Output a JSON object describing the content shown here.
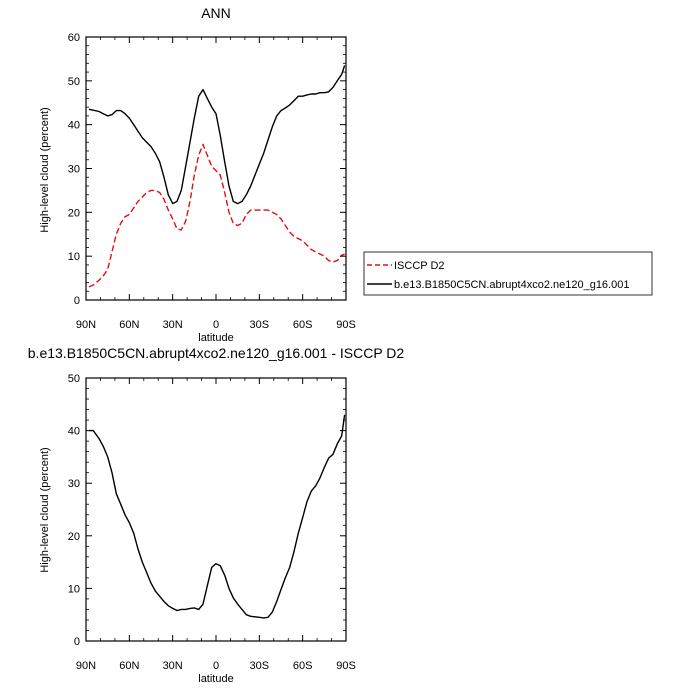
{
  "colors": {
    "obs": "#e01010",
    "model": "#000000",
    "axis": "#000000"
  },
  "chart_data": [
    {
      "type": "line",
      "title": "ANN",
      "xlabel": "latitude",
      "ylabel": "High-level cloud (percent)",
      "xlim": [
        90,
        -90
      ],
      "ylim": [
        0,
        60
      ],
      "xticks": [
        {
          "v": 90,
          "label": "90N"
        },
        {
          "v": 60,
          "label": "60N"
        },
        {
          "v": 30,
          "label": "30N"
        },
        {
          "v": 0,
          "label": "0"
        },
        {
          "v": -30,
          "label": "30S"
        },
        {
          "v": -60,
          "label": "60S"
        },
        {
          "v": -90,
          "label": "90S"
        }
      ],
      "yticks": [
        0,
        10,
        20,
        30,
        40,
        50,
        60
      ],
      "legend_position": "right",
      "series": [
        {
          "name": "ISCCP D2",
          "style": "dashed",
          "color": "#e01010",
          "x": [
            88,
            85,
            81,
            78,
            75,
            72,
            69,
            66,
            63,
            60,
            57,
            54,
            51,
            48,
            45,
            42,
            39,
            36,
            33,
            30,
            27,
            24,
            21,
            18,
            15,
            12,
            9,
            6,
            3,
            0,
            -3,
            -6,
            -9,
            -12,
            -15,
            -18,
            -21,
            -24,
            -27,
            -30,
            -33,
            -36,
            -39,
            -42,
            -45,
            -48,
            -51,
            -54,
            -57,
            -60,
            -63,
            -66,
            -69,
            -72,
            -75,
            -78,
            -81,
            -84,
            -87,
            -89
          ],
          "y": [
            3,
            3.4,
            4.5,
            5.5,
            7,
            11,
            15,
            17.5,
            19,
            19.5,
            21,
            22.5,
            23.5,
            24.5,
            25,
            25,
            24.5,
            23,
            20.5,
            18.5,
            16.2,
            16,
            18,
            22.5,
            28.5,
            33,
            35.5,
            33,
            30.5,
            29.5,
            28.5,
            24.5,
            20,
            17.5,
            17,
            17.5,
            19.5,
            20.5,
            20.5,
            20.5,
            20.5,
            20.5,
            20,
            19.5,
            18.5,
            17,
            15.5,
            14.5,
            14,
            13.5,
            12.5,
            11.5,
            11,
            10.5,
            10,
            9,
            8.7,
            9,
            10.2,
            10.5
          ]
        },
        {
          "name": "b.e13.B1850C5CN.abrupt4xco2.ne120_g16.001",
          "style": "solid",
          "color": "#000000",
          "x": [
            88,
            85,
            81,
            78,
            75,
            72,
            69,
            66,
            63,
            60,
            57,
            54,
            51,
            48,
            45,
            42,
            39,
            36,
            33,
            30,
            27,
            24,
            21,
            18,
            15,
            12,
            9,
            6,
            3,
            0,
            -3,
            -6,
            -9,
            -12,
            -15,
            -18,
            -21,
            -24,
            -27,
            -30,
            -33,
            -36,
            -39,
            -42,
            -45,
            -48,
            -51,
            -54,
            -57,
            -60,
            -63,
            -66,
            -69,
            -72,
            -75,
            -78,
            -81,
            -84,
            -87,
            -89
          ],
          "y": [
            43.5,
            43.3,
            43,
            42.5,
            42,
            42.3,
            43.2,
            43.2,
            42.5,
            41.5,
            40,
            38.5,
            37,
            36,
            35,
            33.5,
            31.5,
            28,
            24,
            22,
            22.5,
            25,
            30.5,
            36,
            41.5,
            46.5,
            48,
            46,
            44,
            42.5,
            37.5,
            31.5,
            26,
            22.5,
            22,
            22.5,
            24,
            26,
            28.5,
            31,
            33.5,
            36.5,
            39.5,
            42,
            43.2,
            43.8,
            44.5,
            45.5,
            46.5,
            46.5,
            46.8,
            47,
            47,
            47.3,
            47.3,
            47.5,
            48.5,
            50,
            51.5,
            53.5
          ]
        }
      ]
    },
    {
      "type": "line",
      "title": "b.e13.B1850C5CN.abrupt4xco2.ne120_g16.001 - ISCCP D2",
      "xlabel": "latitude",
      "ylabel": "High-level cloud (percent)",
      "xlim": [
        90,
        -90
      ],
      "ylim": [
        0,
        50
      ],
      "xticks": [
        {
          "v": 90,
          "label": "90N"
        },
        {
          "v": 60,
          "label": "60N"
        },
        {
          "v": 30,
          "label": "30N"
        },
        {
          "v": 0,
          "label": "0"
        },
        {
          "v": -30,
          "label": "30S"
        },
        {
          "v": -60,
          "label": "60S"
        },
        {
          "v": -90,
          "label": "90S"
        }
      ],
      "yticks": [
        0,
        10,
        20,
        30,
        40,
        50
      ],
      "series": [
        {
          "style": "solid",
          "color": "#000000",
          "x": [
            88,
            85,
            81,
            78,
            75,
            72,
            69,
            66,
            63,
            60,
            57,
            54,
            51,
            48,
            45,
            42,
            39,
            36,
            33,
            30,
            27,
            24,
            21,
            18,
            15,
            12,
            9,
            6,
            3,
            0,
            -3,
            -6,
            -9,
            -12,
            -15,
            -18,
            -21,
            -24,
            -27,
            -30,
            -33,
            -36,
            -39,
            -42,
            -45,
            -48,
            -51,
            -54,
            -57,
            -60,
            -63,
            -66,
            -69,
            -72,
            -75,
            -78,
            -81,
            -84,
            -87,
            -89
          ],
          "y": [
            40,
            40,
            38.5,
            37,
            35,
            32,
            28,
            26,
            24,
            22.5,
            20.5,
            17.5,
            15,
            13,
            11,
            9.5,
            8.5,
            7.5,
            6.7,
            6.2,
            5.8,
            6,
            6,
            6.2,
            6.3,
            6,
            7,
            10.5,
            14,
            14.7,
            14.3,
            12.5,
            10,
            8.2,
            7,
            6,
            5,
            4.7,
            4.6,
            4.5,
            4.4,
            4.5,
            5.5,
            7.5,
            9.8,
            12,
            14,
            17,
            20.5,
            23.5,
            26.5,
            28.5,
            29.5,
            31,
            33,
            34.8,
            35.5,
            37.5,
            39,
            43
          ]
        }
      ]
    }
  ]
}
